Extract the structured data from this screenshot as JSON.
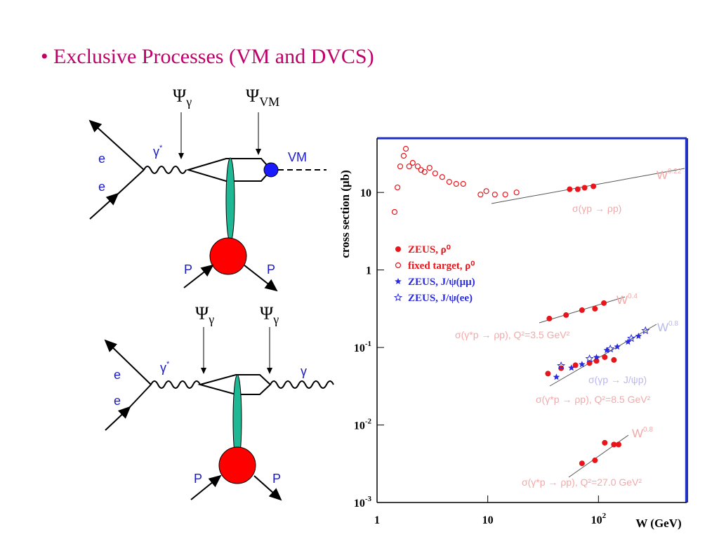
{
  "slide": {
    "bullet": "• Exclusive Processes (VM and DVCS)"
  },
  "diagrams": [
    {
      "psi_labels": [
        {
          "text": "Ψ",
          "sub": "γ"
        },
        {
          "text": "Ψ",
          "sub": "VM"
        }
      ],
      "labels": {
        "e_top": "e",
        "e_bottom": "e",
        "photon": "γ",
        "photon_star": "*",
        "out": "VM",
        "p_in": "P",
        "p_out": "P"
      }
    },
    {
      "psi_labels": [
        {
          "text": "Ψ",
          "sub": "γ"
        },
        {
          "text": "Ψ",
          "sub": "γ"
        }
      ],
      "labels": {
        "e_top": "e",
        "e_bottom": "e",
        "photon": "γ",
        "photon_star": "*",
        "out": "γ",
        "p_in": "P",
        "p_out": "P"
      }
    }
  ],
  "chart_data": {
    "type": "scatter",
    "xlabel": "W (GeV)",
    "ylabel": "cross section (μb)",
    "xscale": "log",
    "yscale": "log",
    "xlim": [
      1,
      600
    ],
    "ylim": [
      0.001,
      50
    ],
    "xticks": [
      1,
      10,
      {
        "value": 100,
        "label": "10",
        "exp": "2"
      }
    ],
    "yticks": [
      {
        "value": 0.001,
        "label": "10",
        "exp": "-3"
      },
      {
        "value": 0.01,
        "label": "10",
        "exp": "-2"
      },
      {
        "value": 0.1,
        "label": "10",
        "exp": "-1"
      },
      1,
      10
    ],
    "series": [
      {
        "name": "ZEUS, ρ⁰",
        "color": "#e8151b",
        "marker": "filled-circle",
        "x": [
          55,
          65,
          75,
          90,
          36,
          51,
          71,
          93,
          112,
          35,
          46,
          62,
          83,
          96,
          114,
          138,
          71,
          93,
          114,
          138,
          152
        ],
        "values": [
          11,
          11,
          11.5,
          12,
          0.236,
          0.262,
          0.303,
          0.316,
          0.374,
          0.046,
          0.054,
          0.059,
          0.063,
          0.067,
          0.075,
          0.069,
          0.0032,
          0.0035,
          0.0059,
          0.0056,
          0.0056
        ]
      },
      {
        "name": "fixed target, ρ⁰",
        "color": "#e8151b",
        "marker": "open-circle",
        "x": [
          1.44,
          1.53,
          1.62,
          1.74,
          1.82,
          1.95,
          2.1,
          2.33,
          2.5,
          2.69,
          2.98,
          3.35,
          3.88,
          4.49,
          5.19,
          6.0,
          8.6,
          9.7,
          11.6,
          14.4,
          18.2
        ],
        "values": [
          5.6,
          11.6,
          21.7,
          29.7,
          36.6,
          21.7,
          24.1,
          21.7,
          19.5,
          18.4,
          20.8,
          17.6,
          15.8,
          13.7,
          12.9,
          12.9,
          9.4,
          10.4,
          9.4,
          9.4,
          10
        ]
      },
      {
        "name": "ZEUS, J/ψ(μμ)",
        "color": "#2a2ae0",
        "marker": "star",
        "x": [
          41.7,
          57,
          71,
          96,
          119,
          148,
          185,
          230
        ],
        "values": [
          0.0415,
          0.0545,
          0.0605,
          0.0746,
          0.092,
          0.102,
          0.118,
          0.14
        ]
      },
      {
        "name": "ZEUS, J/ψ(ee)",
        "color": "#2a2ae0",
        "marker": "open-star",
        "x": [
          46,
          83,
          128,
          198,
          266
        ],
        "values": [
          0.058,
          0.0716,
          0.096,
          0.131,
          0.165
        ]
      }
    ],
    "annotations": [
      {
        "text": "W",
        "sup": "0.22"
      },
      "σ(γp → ρp)",
      {
        "text": "W",
        "sup": "0.4"
      },
      "σ(γ*p → ρp), Q²=3.5 GeV²",
      {
        "text": "W",
        "sup": "0.8"
      },
      "σ(γp → J/ψp)",
      "σ(γ*p → ρp), Q²=8.5 GeV²",
      {
        "text": "W",
        "sup": "0.8"
      },
      "σ(γ*p → ρp), Q²=27.0 GeV²"
    ],
    "legend": "upper-left"
  }
}
